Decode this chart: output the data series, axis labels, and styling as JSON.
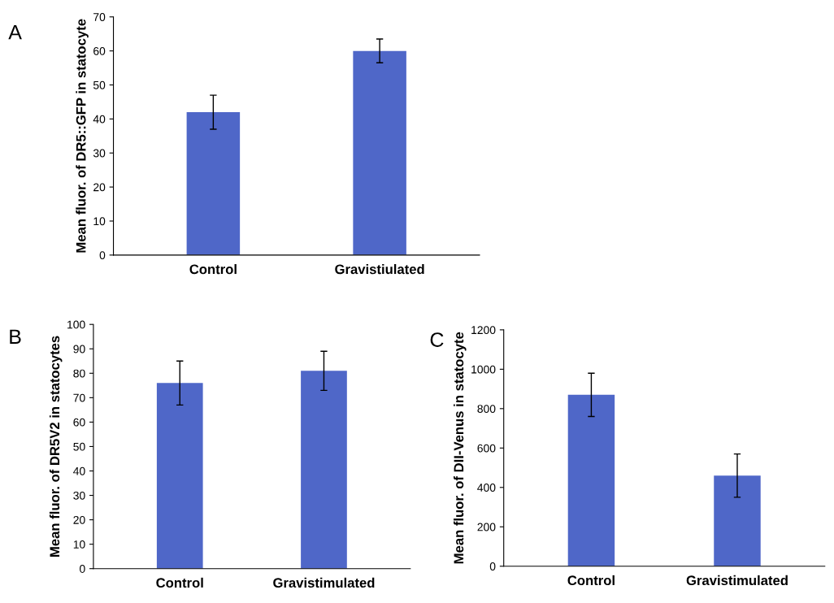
{
  "chart_data": [
    {
      "type": "bar",
      "categories": [
        "Control",
        "Gravistiulated"
      ],
      "values": [
        42,
        60
      ],
      "errors": [
        5,
        3.5
      ],
      "color": "#4f67c8",
      "ylabel": "Mean fluor. of DR5::GFP in statocyte",
      "ylim": [
        0,
        70
      ],
      "yticks": [
        0,
        10,
        20,
        30,
        40,
        50,
        60,
        70
      ],
      "annotations": [
        "A"
      ],
      "grid": false
    },
    {
      "type": "bar",
      "categories": [
        "Control",
        "Gravistimulated"
      ],
      "values": [
        76,
        81
      ],
      "errors": [
        9,
        8
      ],
      "color": "#4f67c8",
      "ylabel": "Mean fluor. of DR5V2 in statocytes",
      "ylim": [
        0,
        100
      ],
      "yticks": [
        0,
        10,
        20,
        30,
        40,
        50,
        60,
        70,
        80,
        90,
        100
      ],
      "annotations": [
        "B"
      ],
      "grid": false
    },
    {
      "type": "bar",
      "categories": [
        "Control",
        "Gravistimulated"
      ],
      "values": [
        870,
        460
      ],
      "errors": [
        110,
        110
      ],
      "color": "#4f67c8",
      "ylabel": "Mean fluor. of DII-Venus in statocyte",
      "ylim": [
        0,
        1200
      ],
      "yticks": [
        0,
        200,
        400,
        600,
        800,
        1000,
        1200
      ],
      "annotations": [
        "C"
      ],
      "grid": false
    }
  ]
}
